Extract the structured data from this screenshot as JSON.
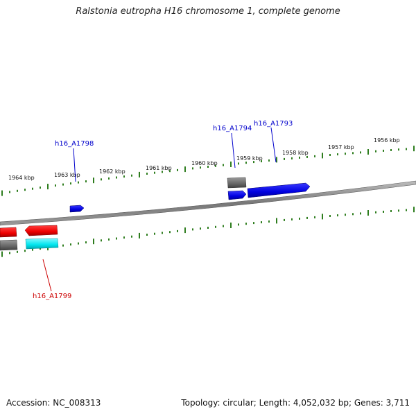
{
  "title": "Ralstonia eutropha H16 chromosome 1, complete genome",
  "footer": {
    "accession": "Accession: NC_008313",
    "summary": "Topology: circular; Length: 4,052,032 bp; Genes: 3,711"
  },
  "scale": {
    "labels": [
      "1964 kbp",
      "1963 kbp",
      "1962 kbp",
      "1961 kbp",
      "1960 kbp",
      "1959 kbp",
      "1958 kbp",
      "1957 kbp",
      "1956 kbp"
    ],
    "tick_color": "#2e7d1e"
  },
  "gene_labels": [
    {
      "id": "h16_A1798",
      "color": "#0000cc"
    },
    {
      "id": "h16_A1794",
      "color": "#0000cc"
    },
    {
      "id": "h16_A1793",
      "color": "#0000cc"
    },
    {
      "id": "h16_A1799",
      "color": "#cc0000"
    }
  ],
  "colors": {
    "forward_gene": "#0000ee",
    "reverse_gene": "#ee0000",
    "other_feature": "#666666",
    "highlight_feature": "#00e5ee",
    "backbone": "#888888"
  }
}
